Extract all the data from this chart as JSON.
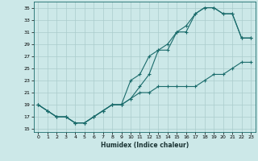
{
  "xlabel": "Humidex (Indice chaleur)",
  "bg_color": "#cce8e8",
  "grid_color": "#aacccc",
  "line_color": "#1a6b6b",
  "xlim": [
    -0.5,
    23.5
  ],
  "ylim": [
    14.5,
    36.0
  ],
  "xticks": [
    0,
    1,
    2,
    3,
    4,
    5,
    6,
    7,
    8,
    9,
    10,
    11,
    12,
    13,
    14,
    15,
    16,
    17,
    18,
    19,
    20,
    21,
    22,
    23
  ],
  "yticks": [
    15,
    17,
    19,
    21,
    23,
    25,
    27,
    29,
    31,
    33,
    35
  ],
  "line1_x": [
    0,
    1,
    2,
    3,
    4,
    5,
    6,
    7,
    8,
    9,
    10,
    11,
    12,
    13,
    14,
    15,
    16,
    17,
    18,
    19,
    20,
    21,
    22,
    23
  ],
  "line1_y": [
    19,
    18,
    17,
    17,
    16,
    16,
    17,
    18,
    19,
    19,
    20,
    22,
    24,
    28,
    28,
    31,
    31,
    34,
    35,
    35,
    34,
    34,
    30,
    30
  ],
  "line2_x": [
    0,
    1,
    2,
    3,
    4,
    5,
    6,
    7,
    8,
    9,
    10,
    11,
    12,
    13,
    14,
    15,
    16,
    17,
    18,
    19,
    20,
    21,
    22,
    23
  ],
  "line2_y": [
    19,
    18,
    17,
    17,
    16,
    16,
    17,
    18,
    19,
    19,
    23,
    24,
    27,
    28,
    29,
    31,
    32,
    34,
    35,
    35,
    34,
    34,
    30,
    30
  ],
  "line3_x": [
    0,
    1,
    2,
    3,
    4,
    5,
    6,
    7,
    8,
    9,
    10,
    11,
    12,
    13,
    14,
    15,
    16,
    17,
    18,
    19,
    20,
    21,
    22,
    23
  ],
  "line3_y": [
    19,
    18,
    17,
    17,
    16,
    16,
    17,
    18,
    19,
    19,
    20,
    21,
    21,
    22,
    22,
    22,
    22,
    22,
    23,
    24,
    24,
    25,
    26,
    26
  ]
}
